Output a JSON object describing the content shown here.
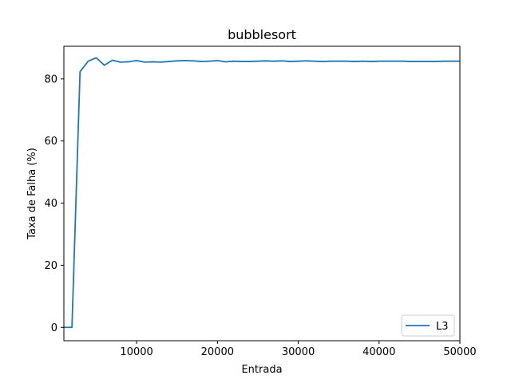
{
  "chart_data": {
    "type": "line",
    "title": "bubblesort",
    "xlabel": "Entrada",
    "ylabel": "Taxa de Falha (%)",
    "xlim": [
      1000,
      50000
    ],
    "ylim": [
      -4.3,
      90.5
    ],
    "xticks": [
      10000,
      20000,
      30000,
      40000,
      50000
    ],
    "yticks": [
      0,
      20,
      40,
      60,
      80
    ],
    "grid": false,
    "legend_position": "lower-right",
    "series": [
      {
        "name": "L3",
        "color": "#1f77b4",
        "x": [
          1000,
          2000,
          3000,
          4000,
          5000,
          6000,
          7000,
          8000,
          9000,
          10000,
          11000,
          12000,
          13000,
          14000,
          15000,
          16000,
          17000,
          18000,
          19000,
          20000,
          21000,
          22000,
          23000,
          24000,
          25000,
          26000,
          27000,
          28000,
          29000,
          30000,
          31000,
          32000,
          33000,
          34000,
          35000,
          36000,
          37000,
          38000,
          39000,
          40000,
          41000,
          42000,
          43000,
          44000,
          45000,
          46000,
          47000,
          48000,
          49000,
          50000
        ],
        "y": [
          0,
          0,
          82.3,
          85.7,
          86.8,
          84.4,
          86.0,
          85.4,
          85.5,
          85.9,
          85.4,
          85.5,
          85.4,
          85.6,
          85.8,
          85.9,
          85.8,
          85.6,
          85.7,
          85.9,
          85.5,
          85.7,
          85.6,
          85.6,
          85.7,
          85.8,
          85.7,
          85.8,
          85.6,
          85.7,
          85.8,
          85.7,
          85.6,
          85.7,
          85.7,
          85.7,
          85.6,
          85.7,
          85.6,
          85.7,
          85.7,
          85.7,
          85.7,
          85.6,
          85.6,
          85.6,
          85.6,
          85.7,
          85.7,
          85.7
        ]
      }
    ]
  }
}
